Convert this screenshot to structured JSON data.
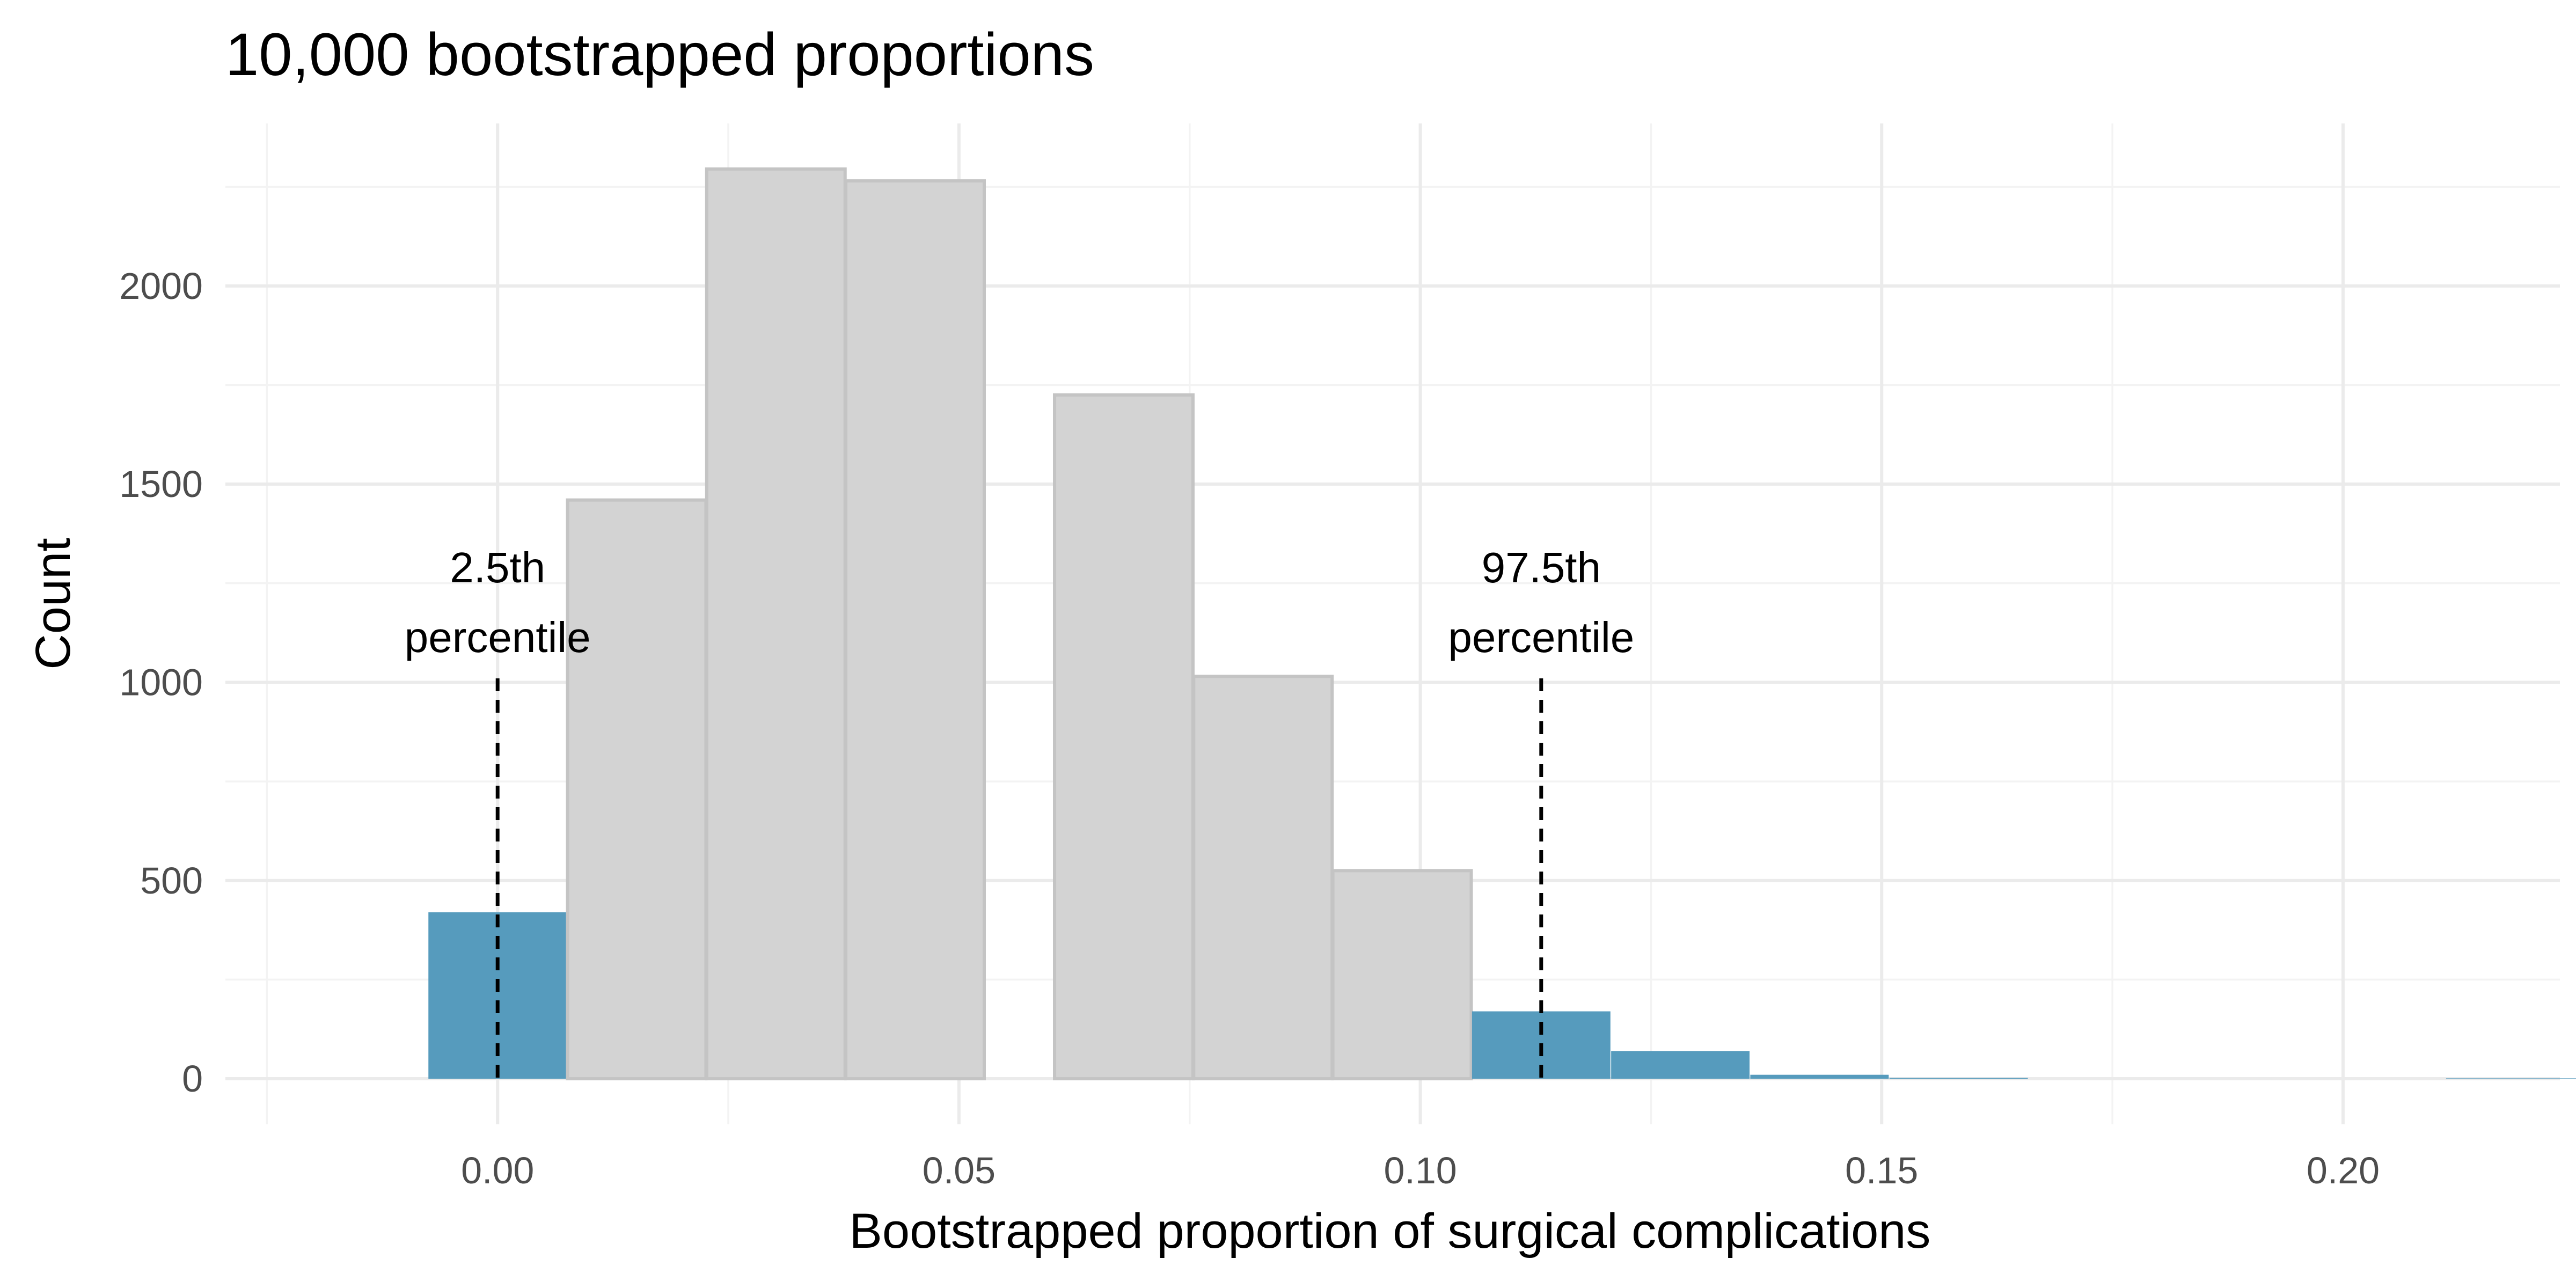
{
  "chart_data": {
    "type": "bar",
    "title": "10,000 bootstrapped proportions",
    "xlabel": "Bootstrapped proportion of surgical complications",
    "ylabel": "Count",
    "xlim": [
      -0.0295,
      0.2235
    ],
    "ylim": [
      -115,
      2410
    ],
    "x_ticks": [
      0.0,
      0.05,
      0.1,
      0.15,
      0.2
    ],
    "x_tick_labels": [
      "0.00",
      "0.05",
      "0.10",
      "0.15",
      "0.20"
    ],
    "y_ticks": [
      0,
      500,
      1000,
      1500,
      2000
    ],
    "y_tick_labels": [
      "0",
      "500",
      "1000",
      "1500",
      "2000"
    ],
    "grid": true,
    "bin_width": 0.015,
    "bars": [
      {
        "x": 0.0,
        "count": 420,
        "tail": true
      },
      {
        "x": 0.01508,
        "count": 1460,
        "tail": false
      },
      {
        "x": 0.03016,
        "count": 2295,
        "tail": false
      },
      {
        "x": 0.04524,
        "count": 2265,
        "tail": false
      },
      {
        "x": 0.06786,
        "count": 1725,
        "tail": false
      },
      {
        "x": 0.08294,
        "count": 1015,
        "tail": false
      },
      {
        "x": 0.09802,
        "count": 525,
        "tail": false
      },
      {
        "x": 0.1131,
        "count": 170,
        "tail": true
      },
      {
        "x": 0.12818,
        "count": 70,
        "tail": true
      },
      {
        "x": 0.14326,
        "count": 10,
        "tail": true
      },
      {
        "x": 0.15834,
        "count": 2,
        "tail": true
      },
      {
        "x": 0.21866,
        "count": 1,
        "tail": true
      }
    ],
    "colors": {
      "tail_fill": "#569bbd",
      "center_fill": "#d3d3d3",
      "center_stroke": "#c4c4c4",
      "percentile_line": "#000000"
    },
    "annotations": [
      {
        "x": 0.0,
        "line_top_count": 1010,
        "line1": "2.5th",
        "line2": "percentile"
      },
      {
        "x": 0.1131,
        "line_top_count": 1010,
        "line1": "97.5th",
        "line2": "percentile"
      }
    ]
  }
}
